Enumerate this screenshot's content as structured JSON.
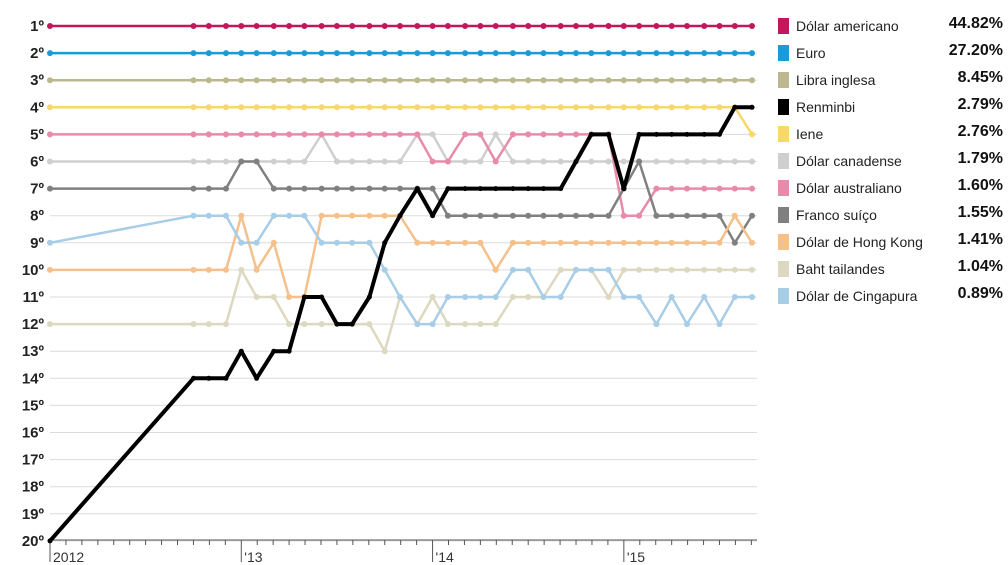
{
  "chart_data": {
    "type": "line",
    "title": "",
    "xlabel": "",
    "ylabel": "",
    "y_tick_labels": [
      "1º",
      "2º",
      "3º",
      "4º",
      "5º",
      "6º",
      "7º",
      "8º",
      "9º",
      "10º",
      "11º",
      "12º",
      "13º",
      "14º",
      "15º",
      "16º",
      "17º",
      "18º",
      "19º",
      "20º"
    ],
    "ylim": [
      1,
      20
    ],
    "y_inverted": true,
    "x_tick_labels": [
      "2012",
      "'13",
      "'14",
      "'15"
    ],
    "grid": "horizontal",
    "legend_position": "right",
    "x": [
      2012.0,
      2012.75,
      2012.83,
      2012.92,
      2013.0,
      2013.08,
      2013.17,
      2013.25,
      2013.33,
      2013.42,
      2013.5,
      2013.58,
      2013.67,
      2013.75,
      2013.83,
      2013.92,
      2014.0,
      2014.08,
      2014.17,
      2014.25,
      2014.33,
      2014.42,
      2014.5,
      2014.58,
      2014.67,
      2014.75,
      2014.83,
      2014.92,
      2015.0,
      2015.08,
      2015.17,
      2015.25,
      2015.33,
      2015.42,
      2015.5,
      2015.58,
      2015.67
    ],
    "series": [
      {
        "name": "Dólar americano",
        "share": "44.82%",
        "color": "#c2185b",
        "values": [
          1,
          1,
          1,
          1,
          1,
          1,
          1,
          1,
          1,
          1,
          1,
          1,
          1,
          1,
          1,
          1,
          1,
          1,
          1,
          1,
          1,
          1,
          1,
          1,
          1,
          1,
          1,
          1,
          1,
          1,
          1,
          1,
          1,
          1,
          1,
          1,
          1
        ]
      },
      {
        "name": "Euro",
        "share": "27.20%",
        "color": "#1a9ad6",
        "values": [
          2,
          2,
          2,
          2,
          2,
          2,
          2,
          2,
          2,
          2,
          2,
          2,
          2,
          2,
          2,
          2,
          2,
          2,
          2,
          2,
          2,
          2,
          2,
          2,
          2,
          2,
          2,
          2,
          2,
          2,
          2,
          2,
          2,
          2,
          2,
          2,
          2
        ]
      },
      {
        "name": "Libra inglesa",
        "share": "8.45%",
        "color": "#bdb790",
        "values": [
          3,
          3,
          3,
          3,
          3,
          3,
          3,
          3,
          3,
          3,
          3,
          3,
          3,
          3,
          3,
          3,
          3,
          3,
          3,
          3,
          3,
          3,
          3,
          3,
          3,
          3,
          3,
          3,
          3,
          3,
          3,
          3,
          3,
          3,
          3,
          3,
          3
        ]
      },
      {
        "name": "Renminbi",
        "share": "2.79%",
        "color": "#000000",
        "values": [
          20,
          14,
          14,
          14,
          13,
          14,
          13,
          13,
          11,
          11,
          12,
          12,
          11,
          9,
          8,
          7,
          8,
          7,
          7,
          7,
          7,
          7,
          7,
          7,
          7,
          6,
          5,
          5,
          7,
          5,
          5,
          5,
          5,
          5,
          5,
          4,
          4
        ]
      },
      {
        "name": "Iene",
        "share": "2.76%",
        "color": "#f7d86a",
        "values": [
          4,
          4,
          4,
          4,
          4,
          4,
          4,
          4,
          4,
          4,
          4,
          4,
          4,
          4,
          4,
          4,
          4,
          4,
          4,
          4,
          4,
          4,
          4,
          4,
          4,
          4,
          4,
          4,
          4,
          4,
          4,
          4,
          4,
          4,
          4,
          4,
          5
        ]
      },
      {
        "name": "Dólar canadense",
        "share": "1.79%",
        "color": "#cfcfcf",
        "values": [
          6,
          6,
          6,
          6,
          6,
          6,
          6,
          6,
          6,
          5,
          6,
          6,
          6,
          6,
          6,
          5,
          5,
          6,
          6,
          6,
          5,
          6,
          6,
          6,
          6,
          6,
          6,
          6,
          6,
          6,
          6,
          6,
          6,
          6,
          6,
          6,
          6
        ]
      },
      {
        "name": "Dólar australiano",
        "share": "1.60%",
        "color": "#e78aab",
        "values": [
          5,
          5,
          5,
          5,
          5,
          5,
          5,
          5,
          5,
          5,
          5,
          5,
          5,
          5,
          5,
          5,
          6,
          6,
          5,
          5,
          6,
          5,
          5,
          5,
          5,
          5,
          5,
          5,
          8,
          8,
          7,
          7,
          7,
          7,
          7,
          7,
          7
        ]
      },
      {
        "name": "Franco suíço",
        "share": "1.55%",
        "color": "#808080",
        "values": [
          7,
          7,
          7,
          7,
          6,
          6,
          7,
          7,
          7,
          7,
          7,
          7,
          7,
          7,
          7,
          7,
          7,
          8,
          8,
          8,
          8,
          8,
          8,
          8,
          8,
          8,
          8,
          8,
          7,
          6,
          8,
          8,
          8,
          8,
          8,
          9,
          8
        ]
      },
      {
        "name": "Dólar de Hong Kong",
        "share": "1.41%",
        "color": "#f5c08a",
        "values": [
          10,
          10,
          10,
          10,
          8,
          10,
          9,
          11,
          11,
          8,
          8,
          8,
          8,
          8,
          8,
          9,
          9,
          9,
          9,
          9,
          10,
          9,
          9,
          9,
          9,
          9,
          9,
          9,
          9,
          9,
          9,
          9,
          9,
          9,
          9,
          8,
          9
        ]
      },
      {
        "name": "Baht tailandes",
        "share": "1.04%",
        "color": "#ddd8c0",
        "values": [
          12,
          12,
          12,
          12,
          10,
          11,
          11,
          12,
          12,
          12,
          12,
          12,
          12,
          13,
          11,
          12,
          11,
          12,
          12,
          12,
          12,
          11,
          11,
          11,
          10,
          10,
          10,
          11,
          10,
          10,
          10,
          10,
          10,
          10,
          10,
          10,
          10
        ]
      },
      {
        "name": "Dólar de Cingapura",
        "share": "0.89%",
        "color": "#a8cde7",
        "values": [
          9,
          8,
          8,
          8,
          9,
          9,
          8,
          8,
          8,
          9,
          9,
          9,
          9,
          10,
          11,
          12,
          12,
          11,
          11,
          11,
          11,
          10,
          10,
          11,
          11,
          10,
          10,
          10,
          11,
          11,
          12,
          11,
          12,
          11,
          12,
          11,
          11
        ]
      }
    ]
  }
}
